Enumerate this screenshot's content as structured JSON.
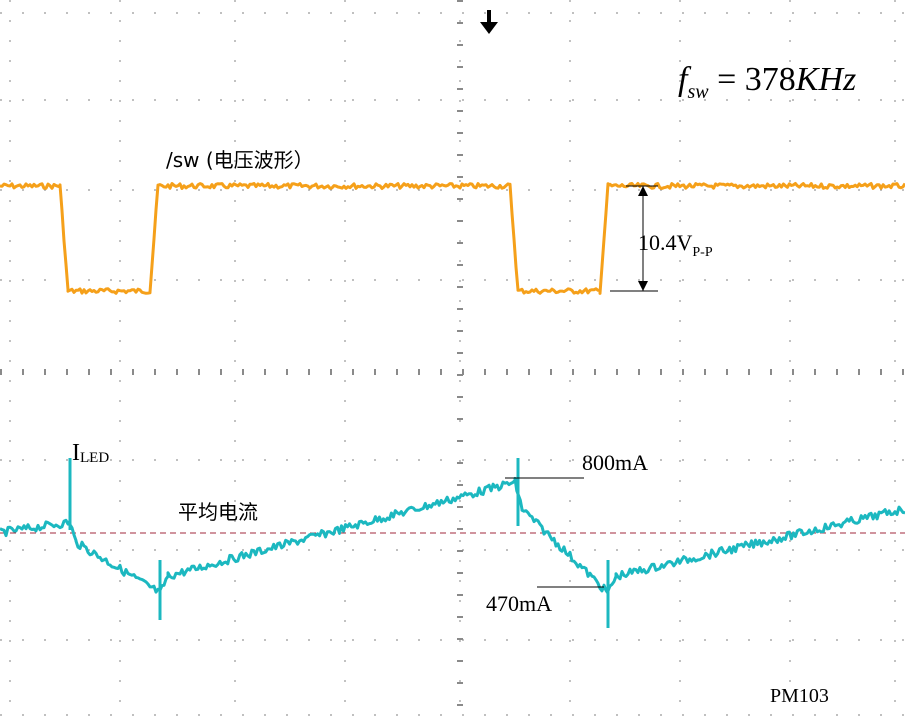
{
  "chart_data": {
    "type": "line",
    "title": "",
    "grid": true,
    "annotations": {
      "frequency": {
        "f": "f",
        "sub": "sw",
        "eq": " = 378",
        "unit": "KHz"
      },
      "sw_label": "/sw (电压波形）",
      "vpp": {
        "value": "10.4V",
        "sub": "P-P"
      },
      "iled": {
        "main": "I",
        "sub": "LED"
      },
      "avg_label": "平均电流",
      "peak_label": "800mA",
      "valley_label": "470mA",
      "model": "PM103"
    },
    "series": [
      {
        "name": "/sw (电压波形）",
        "color": "#f5a01a",
        "x": [
          0,
          60,
          68,
          150,
          158,
          510,
          518,
          600,
          608,
          905
        ],
        "y": [
          10.4,
          10.4,
          0,
          0,
          10.4,
          10.4,
          0,
          0,
          10.4,
          10.4
        ]
      },
      {
        "name": "I",
        "color": "#1cb8c0",
        "x": [
          0,
          70,
          76,
          160,
          168,
          515,
          522,
          608,
          616,
          905
        ],
        "y": [
          650,
          680,
          620,
          470,
          520,
          800,
          720,
          470,
          520,
          720
        ]
      }
    ],
    "average_current_line_color": "#a0283c"
  }
}
